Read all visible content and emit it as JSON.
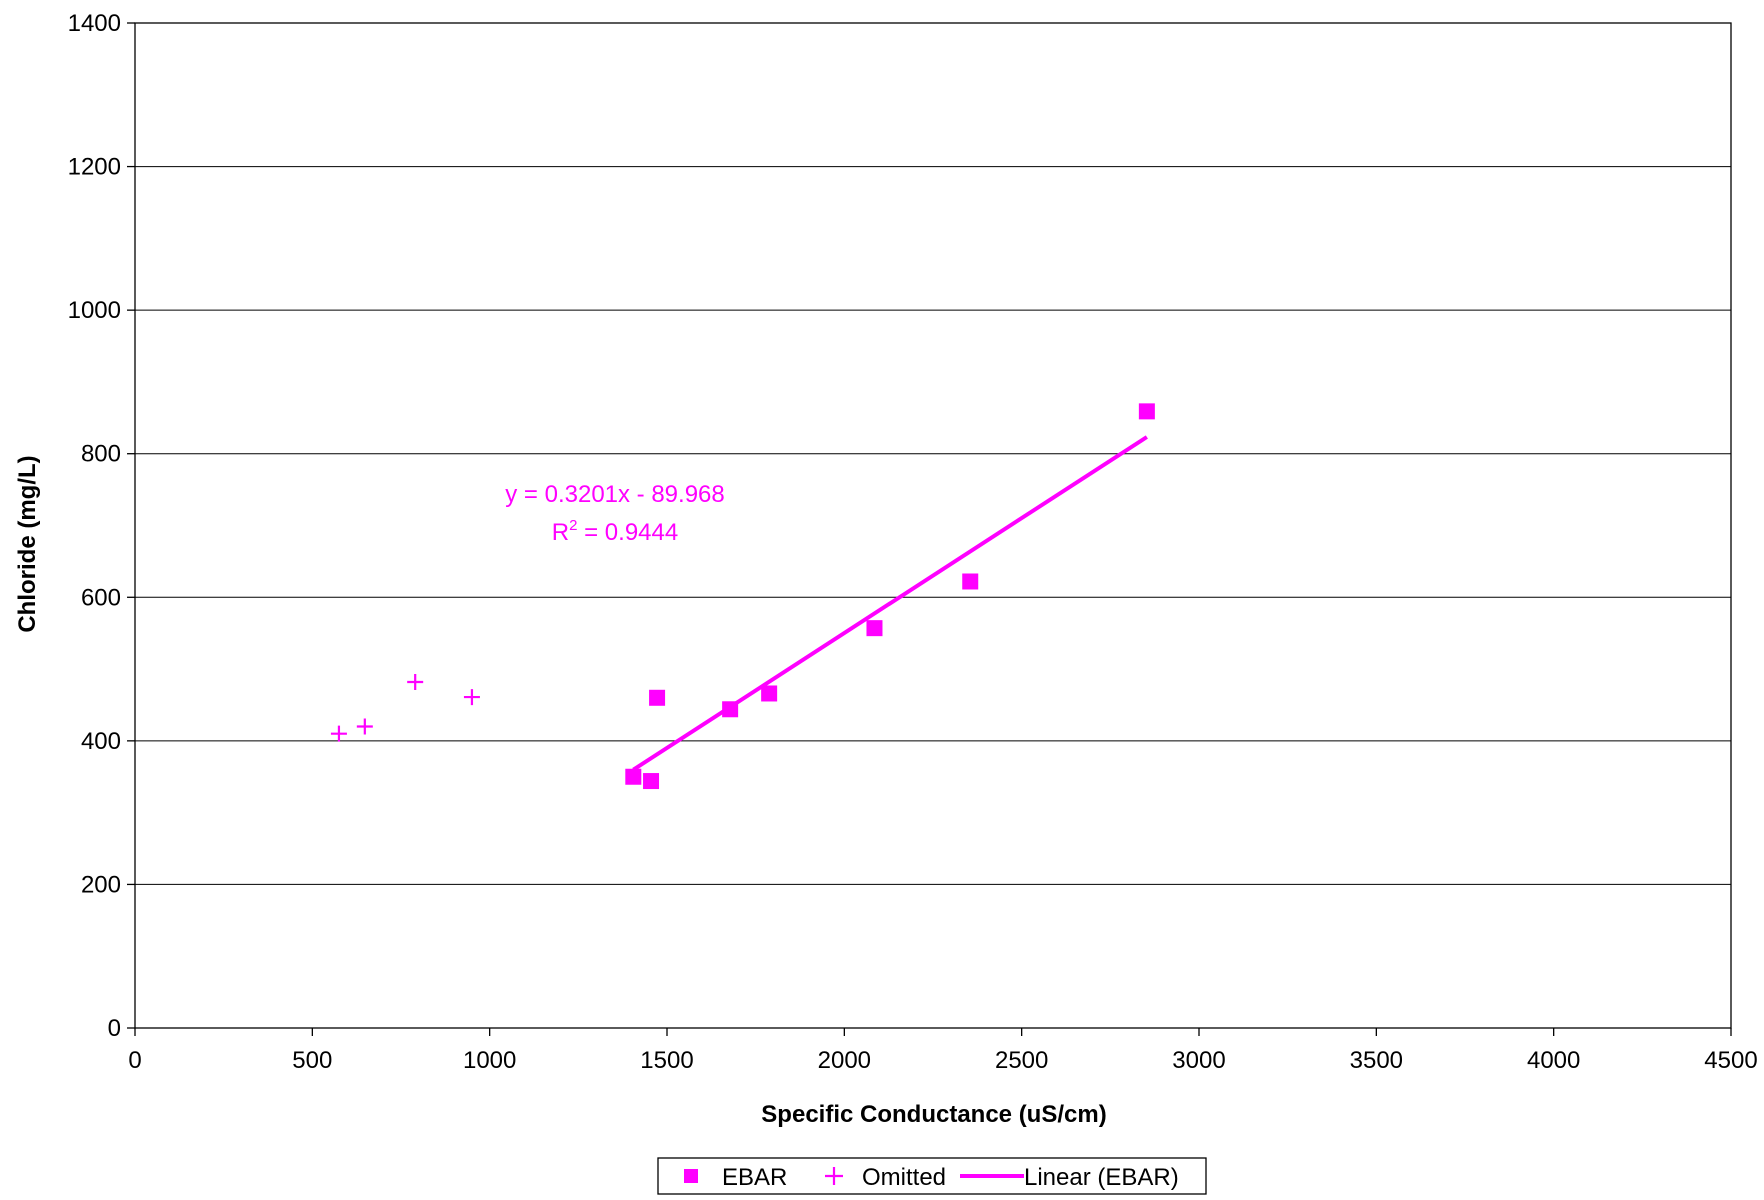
{
  "chart_data": {
    "type": "scatter",
    "title": "",
    "xlabel": "Specific Conductance (uS/cm)",
    "ylabel": "Chloride (mg/L)",
    "xlim": [
      0,
      4500
    ],
    "ylim": [
      0,
      1400
    ],
    "x_ticks": [
      0,
      500,
      1000,
      1500,
      2000,
      2500,
      3000,
      3500,
      4000,
      4500
    ],
    "y_ticks": [
      0,
      200,
      400,
      600,
      800,
      1000,
      1200,
      1400
    ],
    "grid": "horizontal",
    "legend_position": "bottom-center",
    "accent_color": "#ff00ff",
    "series": [
      {
        "name": "EBAR",
        "marker": "square",
        "color": "#ff00ff",
        "points": [
          {
            "x": 1405,
            "y": 350
          },
          {
            "x": 1455,
            "y": 344
          },
          {
            "x": 1472,
            "y": 460
          },
          {
            "x": 1678,
            "y": 444
          },
          {
            "x": 1788,
            "y": 466
          },
          {
            "x": 2085,
            "y": 557
          },
          {
            "x": 2355,
            "y": 622
          },
          {
            "x": 2853,
            "y": 859
          }
        ]
      },
      {
        "name": "Omitted",
        "marker": "plus",
        "color": "#ff00ff",
        "points": [
          {
            "x": 575,
            "y": 410
          },
          {
            "x": 648,
            "y": 420
          },
          {
            "x": 790,
            "y": 482
          },
          {
            "x": 950,
            "y": 461
          }
        ]
      }
    ],
    "trendline": {
      "name": "Linear (EBAR)",
      "slope": 0.3201,
      "intercept": -89.968,
      "x_range": [
        1405,
        2853
      ],
      "color": "#ff00ff",
      "equation_label": "y = 0.3201x - 89.968",
      "r2_prefix": "R",
      "r2_sup": "2",
      "r2_value_text": " = 0.9444"
    }
  }
}
